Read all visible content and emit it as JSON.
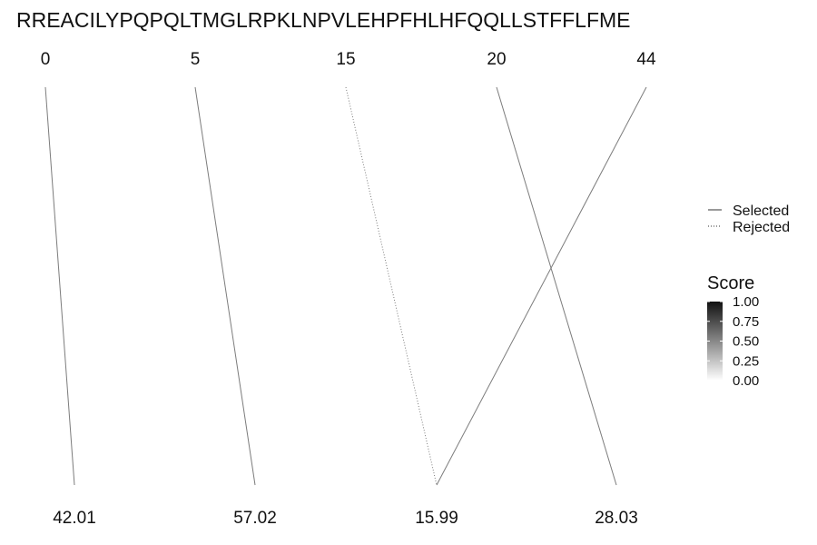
{
  "chart_data": {
    "type": "diagram",
    "title": "RREACILYPQPQLTMGLRPKLNPVLEHPFHLHFQQLLSTFFLFME",
    "top_labels": [
      "0",
      "5",
      "15",
      "20",
      "44"
    ],
    "bottom_labels": [
      "42.01",
      "57.02",
      "15.99",
      "28.03"
    ],
    "links": [
      {
        "from": 0,
        "to": 0,
        "status": "Selected",
        "score": 0.55
      },
      {
        "from": 1,
        "to": 1,
        "status": "Selected",
        "score": 0.55
      },
      {
        "from": 2,
        "to": 2,
        "status": "Rejected",
        "score": 0.55
      },
      {
        "from": 3,
        "to": 3,
        "status": "Selected",
        "score": 0.55
      },
      {
        "from": 4,
        "to": 2,
        "status": "Selected",
        "score": 0.55
      }
    ],
    "legend": {
      "position": "right",
      "items": [
        {
          "label": "Selected",
          "style": "solid"
        },
        {
          "label": "Rejected",
          "style": "dotted"
        }
      ]
    },
    "colorbar": {
      "title": "Score",
      "range": [
        0,
        1
      ],
      "ticks": [
        "1.00",
        "0.75",
        "0.50",
        "0.25",
        "0.00"
      ],
      "colors": [
        "#111111",
        "#ffffff"
      ]
    },
    "grid": false
  }
}
